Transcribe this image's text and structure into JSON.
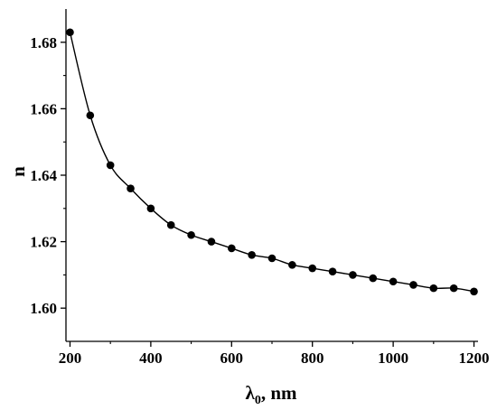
{
  "chart_data": {
    "type": "line",
    "title": "",
    "xlabel": {
      "main": "λ",
      "sub": "0",
      "suffix": ", nm"
    },
    "ylabel": "n",
    "xlim": [
      190,
      1210
    ],
    "ylim": [
      1.59,
      1.69
    ],
    "xticks": [
      200,
      400,
      600,
      800,
      1000,
      1200
    ],
    "xtick_labels": [
      "200",
      "400",
      "600",
      "800",
      "1000",
      "1200"
    ],
    "yticks": [
      1.6,
      1.62,
      1.64,
      1.66,
      1.68
    ],
    "ytick_labels": [
      "1.60",
      "1.62",
      "1.64",
      "1.66",
      "1.68"
    ],
    "grid": false,
    "series": [
      {
        "marker": "filled-circle",
        "line": "smooth",
        "color": "#000000",
        "x": [
          200,
          250,
          300,
          350,
          400,
          450,
          500,
          550,
          600,
          650,
          700,
          750,
          800,
          850,
          900,
          950,
          1000,
          1050,
          1100,
          1150,
          1200
        ],
        "y": [
          1.683,
          1.658,
          1.643,
          1.636,
          1.63,
          1.625,
          1.622,
          1.62,
          1.618,
          1.616,
          1.615,
          1.613,
          1.612,
          1.611,
          1.61,
          1.609,
          1.608,
          1.607,
          1.606,
          1.606,
          1.605
        ]
      }
    ]
  }
}
